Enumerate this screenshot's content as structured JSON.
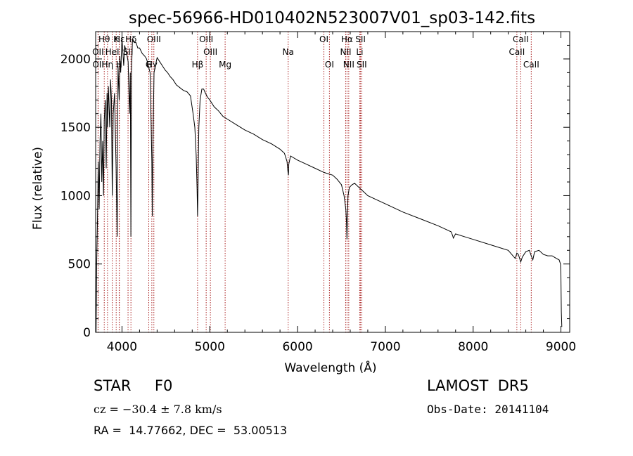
{
  "chart_data": {
    "type": "line",
    "title": "spec-56966-HD010402N523007V01_sp03-142.fits",
    "xlabel": "Wavelength (Å)",
    "ylabel": "Flux (relative)",
    "xlim": [
      3700,
      9100
    ],
    "ylim": [
      0,
      2200
    ],
    "xticks": [
      4000,
      5000,
      6000,
      7000,
      8000,
      9000
    ],
    "yticks": [
      0,
      500,
      1000,
      1500,
      2000
    ],
    "grid": false,
    "series_color": "#000000",
    "line_marker_color": "#aa2222",
    "series": [
      {
        "x": [
          3705,
          3712,
          3720,
          3730,
          3740,
          3750,
          3760,
          3770,
          3780,
          3790,
          3798,
          3810,
          3820,
          3830,
          3835,
          3845,
          3860,
          3870,
          3880,
          3889,
          3900,
          3915,
          3933,
          3945,
          3955,
          3968,
          3975,
          3985,
          4000,
          4010,
          4020,
          4030,
          4050,
          4070,
          4085,
          4095,
          4101,
          4108,
          4120,
          4140,
          4160,
          4180,
          4200,
          4230,
          4260,
          4280,
          4300,
          4320,
          4340,
          4345,
          4350,
          4365,
          4380,
          4400,
          4430,
          4460,
          4490,
          4520,
          4550,
          4580,
          4620,
          4660,
          4700,
          4740,
          4780,
          4810,
          4830,
          4845,
          4855,
          4861,
          4866,
          4875,
          4890,
          4910,
          4930,
          4950,
          4975,
          5000,
          5050,
          5100,
          5150,
          5200,
          5300,
          5400,
          5500,
          5600,
          5700,
          5800,
          5850,
          5880,
          5890,
          5896,
          5900,
          5920,
          6000,
          6100,
          6200,
          6300,
          6400,
          6450,
          6500,
          6530,
          6550,
          6558,
          6563,
          6568,
          6575,
          6590,
          6620,
          6650,
          6700,
          6750,
          6800,
          6900,
          7000,
          7200,
          7400,
          7600,
          7700,
          7750,
          7765,
          7775,
          7800,
          7900,
          8000,
          8200,
          8400,
          8480,
          8498,
          8515,
          8542,
          8560,
          8600,
          8640,
          8662,
          8680,
          8700,
          8750,
          8800,
          8850,
          8900,
          8950,
          8980,
          8995,
          9000,
          9005,
          9010
        ],
        "y": [
          0,
          520,
          800,
          1250,
          900,
          1400,
          1600,
          1100,
          1400,
          1000,
          1550,
          1700,
          1200,
          1750,
          1500,
          1800,
          1500,
          1850,
          1700,
          1000,
          1600,
          1750,
          1200,
          700,
          1950,
          1700,
          2020,
          1900,
          2150,
          2050,
          1950,
          2100,
          2050,
          1980,
          1600,
          1900,
          700,
          1900,
          2150,
          2120,
          2120,
          2080,
          2080,
          2040,
          2020,
          2000,
          1950,
          1900,
          1250,
          850,
          1250,
          1900,
          1950,
          2010,
          1980,
          1950,
          1920,
          1900,
          1870,
          1850,
          1810,
          1790,
          1770,
          1760,
          1730,
          1600,
          1500,
          1300,
          1050,
          850,
          1050,
          1500,
          1700,
          1780,
          1780,
          1750,
          1720,
          1700,
          1650,
          1620,
          1580,
          1560,
          1520,
          1480,
          1450,
          1410,
          1380,
          1340,
          1310,
          1250,
          1180,
          1150,
          1230,
          1290,
          1260,
          1230,
          1200,
          1170,
          1150,
          1120,
          1080,
          1000,
          900,
          800,
          680,
          850,
          1000,
          1060,
          1080,
          1090,
          1060,
          1030,
          1000,
          970,
          940,
          880,
          830,
          780,
          750,
          735,
          710,
          690,
          720,
          700,
          680,
          640,
          600,
          540,
          580,
          570,
          515,
          550,
          590,
          600,
          560,
          530,
          590,
          600,
          570,
          560,
          560,
          540,
          530,
          500,
          420,
          150,
          40
        ]
      }
    ],
    "lines": [
      {
        "name": "Hθ",
        "x": 3798,
        "row": 1
      },
      {
        "name": "K",
        "x": 3934,
        "row": 1
      },
      {
        "name": "Hε",
        "x": 3970,
        "row": 1
      },
      {
        "name": "Hδ",
        "x": 4102,
        "row": 1
      },
      {
        "name": "OIII",
        "x": 4363,
        "row": 1
      },
      {
        "name": "OIII",
        "x": 4959,
        "row": 1
      },
      {
        "name": "OI",
        "x": 6300,
        "row": 1
      },
      {
        "name": "Hα",
        "x": 6563,
        "row": 1
      },
      {
        "name": "SII",
        "x": 6717,
        "row": 1
      },
      {
        "name": "CaII",
        "x": 8542,
        "row": 1
      },
      {
        "name": "OII",
        "x": 3727,
        "row": 2
      },
      {
        "name": "HeI",
        "x": 3889,
        "row": 2
      },
      {
        "name": "SII",
        "x": 4069,
        "row": 2
      },
      {
        "name": "OIII",
        "x": 5007,
        "row": 2
      },
      {
        "name": "Na",
        "x": 5893,
        "row": 2
      },
      {
        "name": "NII",
        "x": 6548,
        "row": 2
      },
      {
        "name": "Li",
        "x": 6708,
        "row": 2
      },
      {
        "name": "CaII",
        "x": 8498,
        "row": 2
      },
      {
        "name": "OII",
        "x": 3729,
        "row": 3
      },
      {
        "name": "Hη",
        "x": 3835,
        "row": 3
      },
      {
        "name": "H",
        "x": 3968,
        "row": 3
      },
      {
        "name": "G",
        "x": 4305,
        "row": 3
      },
      {
        "name": "Hγ",
        "x": 4340,
        "row": 3
      },
      {
        "name": "Hβ",
        "x": 4861,
        "row": 3
      },
      {
        "name": "Mg",
        "x": 5175,
        "row": 3
      },
      {
        "name": "OI",
        "x": 6363,
        "row": 3
      },
      {
        "name": "NII",
        "x": 6583,
        "row": 3
      },
      {
        "name": "SII",
        "x": 6731,
        "row": 3
      },
      {
        "name": "CaII",
        "x": 8662,
        "row": 3
      }
    ]
  },
  "info": {
    "star_type": "STAR     F0",
    "survey": "LAMOST  DR5",
    "cz": "cz = −30.4 ± 7.8 km/s",
    "obs_date": "Obs-Date: 20141104",
    "radec": "RA =  14.77662, DEC =  53.00513"
  }
}
